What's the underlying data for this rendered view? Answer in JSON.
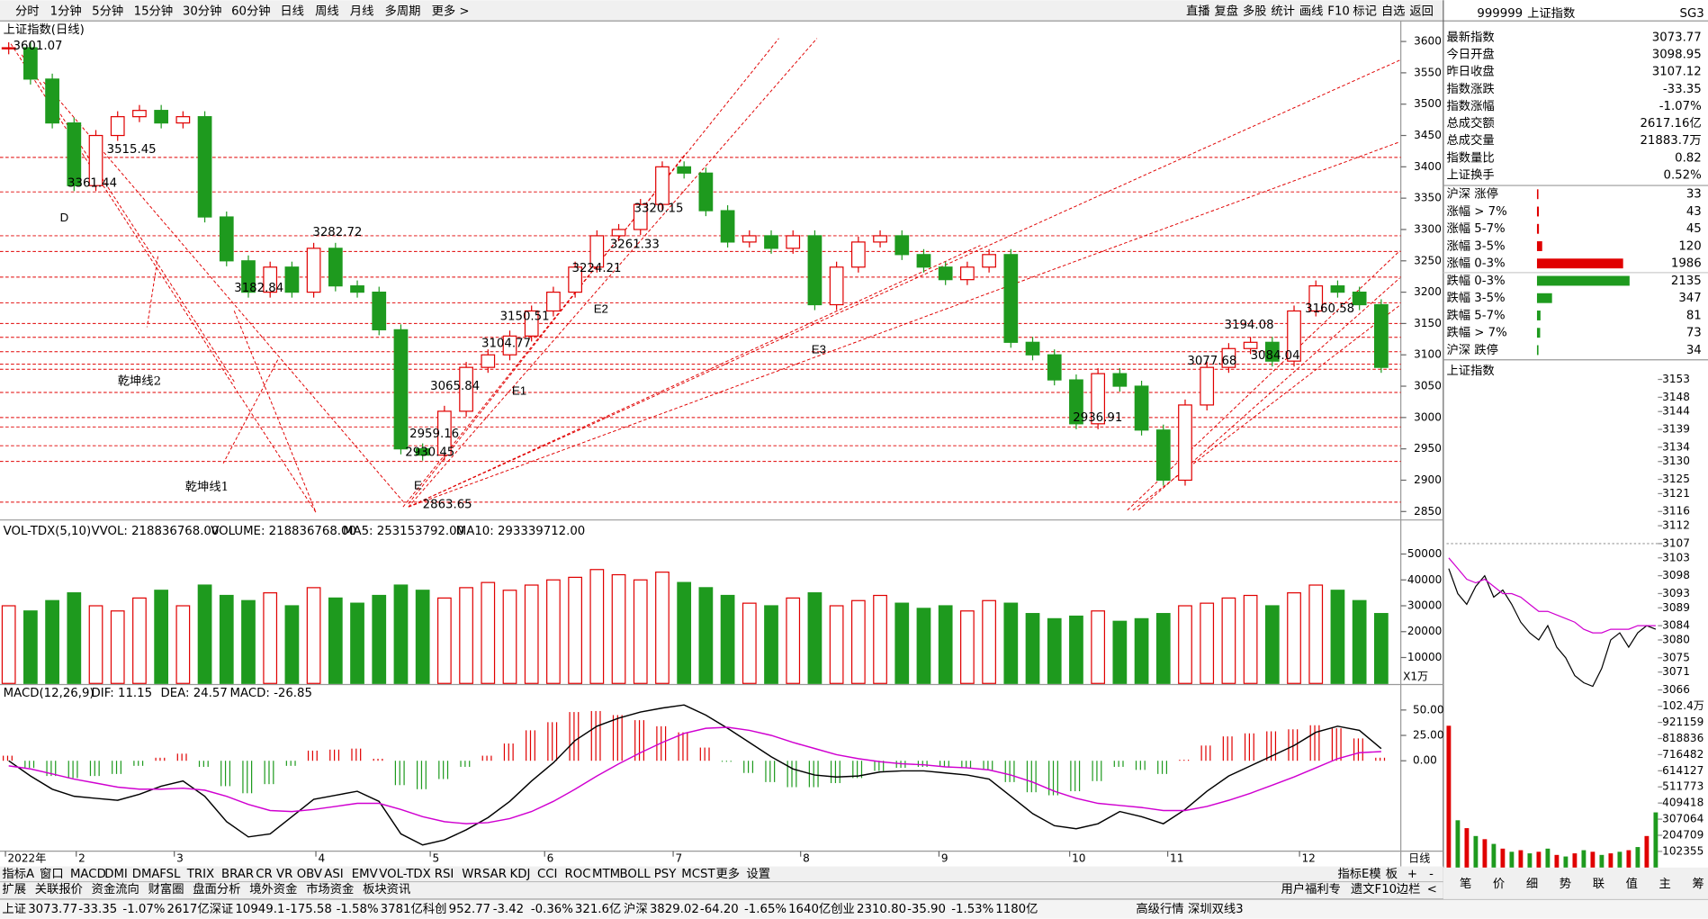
{
  "toolbar": {
    "periods": [
      "分时",
      "1分钟",
      "5分钟",
      "15分钟",
      "30分钟",
      "60分钟",
      "日线",
      "周线",
      "月线",
      "多周期",
      "更多 >"
    ],
    "active": "日线",
    "tools": [
      "直播",
      "复盘",
      "多股",
      "统计",
      "画线",
      "F10",
      "标记",
      "自选",
      "返回"
    ]
  },
  "main_chart": {
    "title": "上证指数(日线)",
    "ylim": [
      2840,
      3631
    ],
    "yticks": [
      3600,
      3550,
      3500,
      3450,
      3400,
      3350,
      3300,
      3250,
      3200,
      3150,
      3100,
      3050,
      3000,
      2950,
      2900,
      2850
    ],
    "closes": [
      3590,
      3540,
      3470,
      3370,
      3450,
      3480,
      3490,
      3470,
      3480,
      3320,
      3250,
      3200,
      3240,
      3200,
      3270,
      3210,
      3200,
      3140,
      2950,
      2940,
      3010,
      3080,
      3100,
      3130,
      3170,
      3200,
      3240,
      3290,
      3300,
      3340,
      3400,
      3390,
      3330,
      3280,
      3290,
      3270,
      3290,
      3180,
      3240,
      3280,
      3290,
      3260,
      3240,
      3220,
      3240,
      3260,
      3120,
      3100,
      3060,
      2990,
      3070,
      3050,
      2980,
      2900,
      3020,
      3080,
      3110,
      3120,
      3090,
      3170,
      3210,
      3200,
      3180,
      3080
    ],
    "levels": [
      3415,
      3360,
      3290,
      3265,
      3224,
      3183,
      3150,
      3128,
      3105,
      3085,
      3077,
      3040,
      3000,
      2985,
      2955,
      2930,
      2865
    ],
    "price_labels": [
      "3601.07",
      "3515.45",
      "3361.44",
      "3282.72",
      "3182.84",
      "3150.51",
      "3104.77",
      "3065.84",
      "3224.21",
      "3261.33",
      "3320.15",
      "2959.16",
      "2930.45",
      "2863.65",
      "2936.91",
      "3077.68",
      "3194.08",
      "3160.58",
      "3084.04"
    ],
    "annotations": [
      "D",
      "乾坤线2",
      "乾坤线1",
      "E",
      "E1",
      "E2",
      "E3"
    ]
  },
  "volume_panel": {
    "indicator": "VOL-TDX(5,10)",
    "readouts": [
      "VVOL: 218836768.00",
      "VOLUME: 218836768.00",
      "MA5: 253153792.00",
      "MA10: 293339712.00"
    ],
    "unit": "X1万",
    "ylim": [
      0,
      61900
    ],
    "yticks": [
      50000,
      40000,
      30000,
      20000,
      10000
    ],
    "values": [
      30000,
      28000,
      32000,
      35000,
      30000,
      28000,
      33000,
      36000,
      30000,
      38000,
      34000,
      32000,
      35000,
      30000,
      37000,
      33000,
      31000,
      34000,
      38000,
      36000,
      33000,
      37000,
      39000,
      36000,
      38000,
      40000,
      41000,
      44000,
      42000,
      40000,
      43000,
      39000,
      37000,
      34000,
      31000,
      30000,
      33000,
      35000,
      30000,
      32000,
      34000,
      31000,
      29000,
      30000,
      28000,
      32000,
      31000,
      27000,
      25000,
      26000,
      28000,
      24000,
      25000,
      27000,
      30000,
      31000,
      33000,
      34000,
      30000,
      35000,
      38000,
      36000,
      32000,
      27000
    ]
  },
  "macd_panel": {
    "indicator": "MACD(12,26,9)",
    "readouts": [
      "DIF: 11.15",
      "DEA: 24.57",
      "MACD: -26.85"
    ],
    "ylim": [
      -88,
      73
    ],
    "yticks": [
      {
        "value": 50,
        "label": "50.00"
      },
      {
        "value": 25,
        "label": "25.00"
      },
      {
        "value": 0,
        "label": "0.00"
      }
    ],
    "dif": [
      0,
      -15,
      -28,
      -35,
      -37,
      -39,
      -33,
      -25,
      -20,
      -35,
      -60,
      -75,
      -72,
      -55,
      -38,
      -34,
      -30,
      -40,
      -72,
      -83,
      -78,
      -68,
      -56,
      -40,
      -20,
      -2,
      20,
      34,
      42,
      48,
      52,
      55,
      45,
      32,
      18,
      4,
      -8,
      -14,
      -16,
      -15,
      -11,
      -10,
      -10,
      -12,
      -14,
      -18,
      -35,
      -52,
      -64,
      -67,
      -62,
      -50,
      -55,
      -62,
      -48,
      -30,
      -15,
      -5,
      5,
      15,
      28,
      34,
      30,
      12
    ],
    "dea": [
      -5,
      -8,
      -13,
      -18,
      -22,
      -26,
      -28,
      -28,
      -27,
      -29,
      -35,
      -43,
      -49,
      -50,
      -48,
      -45,
      -42,
      -42,
      -48,
      -55,
      -60,
      -62,
      -61,
      -57,
      -50,
      -40,
      -28,
      -15,
      -3,
      8,
      18,
      27,
      32,
      33,
      30,
      25,
      18,
      12,
      6,
      2,
      -1,
      -3,
      -4,
      -6,
      -7,
      -9,
      -14,
      -21,
      -30,
      -37,
      -42,
      -44,
      -46,
      -49,
      -49,
      -45,
      -39,
      -32,
      -24,
      -16,
      -7,
      2,
      8,
      9
    ],
    "macd": [
      5,
      -7,
      -15,
      -17,
      -15,
      -13,
      -5,
      3,
      7,
      -6,
      -25,
      -32,
      -23,
      -5,
      10,
      11,
      12,
      2,
      -24,
      -28,
      -18,
      -6,
      5,
      17,
      30,
      38,
      48,
      49,
      45,
      40,
      34,
      28,
      13,
      -1,
      -12,
      -21,
      -26,
      -26,
      -22,
      -17,
      -10,
      -7,
      -6,
      -6,
      -7,
      -9,
      -21,
      -31,
      -34,
      -30,
      -20,
      -6,
      -9,
      -13,
      1,
      15,
      24,
      27,
      29,
      31,
      35,
      32,
      22,
      3
    ]
  },
  "date_axis": {
    "labels": [
      "2022年",
      "2",
      "3",
      "4",
      "5",
      "6",
      "7",
      "8",
      "9",
      "10",
      "11",
      "12"
    ],
    "period": "日线"
  },
  "indicator_tabs": [
    "指标A",
    "窗口",
    "MACD",
    "DMI",
    "DMA",
    "FSL",
    "TRIX",
    "BRAR",
    "CR",
    "VR",
    "OBV",
    "ASI",
    "EMV",
    "VOL-TDX",
    "RSI",
    "WR",
    "SAR",
    "KDJ",
    "CCI",
    "ROC",
    "MTM",
    "BOLL",
    "PSY",
    "MCST",
    "更多",
    "设置"
  ],
  "indicator_tabs_right": [
    "指标E模",
    "板",
    "+",
    "-"
  ],
  "info_tabs": [
    "扩展",
    "关联报价",
    "资金流向",
    "财富圈",
    "盘面分析",
    "境外资金",
    "市场资金",
    "板块资讯"
  ],
  "info_tabs_right": [
    "用户福利专",
    "遗文F10",
    "边栏",
    "<"
  ],
  "quote_panel": {
    "code": "999999",
    "name": "上证指数",
    "badge": "SG3",
    "rows": [
      [
        "最新指数",
        "3073.77"
      ],
      [
        "今日开盘",
        "3098.95"
      ],
      [
        "昨日收盘",
        "3107.12"
      ],
      [
        "指数涨跌",
        "-33.35"
      ],
      [
        "指数涨幅",
        "-1.07%"
      ],
      [
        "总成交额",
        "2617.16亿"
      ],
      [
        "总成交量",
        "21883.7万"
      ],
      [
        "指数量比",
        "0.82"
      ],
      [
        "上证换手",
        "0.52%"
      ]
    ],
    "breadth": [
      {
        "label": "沪深 涨停",
        "count": 33
      },
      {
        "label": "涨幅 > 7%",
        "count": 43
      },
      {
        "label": "涨幅 5-7%",
        "count": 45
      },
      {
        "label": "涨幅 3-5%",
        "count": 120
      },
      {
        "label": "涨幅 0-3%",
        "count": 1986
      },
      {
        "label": "跌幅 0-3%",
        "count": 2135
      },
      {
        "label": "跌幅 3-5%",
        "count": 347
      },
      {
        "label": "跌幅 5-7%",
        "count": 81
      },
      {
        "label": "跌幅 > 7%",
        "count": 73
      },
      {
        "label": "沪深 跌停",
        "count": 34
      }
    ],
    "mini_title": "上证指数",
    "mini_price_ylim": [
      3066,
      3153
    ],
    "mini_price_ticks": [
      3153,
      3148,
      3144,
      3139,
      3134,
      3130,
      3125,
      3121,
      3116,
      3112,
      3107,
      3103,
      3098,
      3093,
      3089,
      3084,
      3080,
      3075,
      3071,
      3066
    ],
    "mini_volume_ylim": [
      0,
      1023550
    ],
    "mini_volume_ticks": [
      {
        "value": 1023550,
        "label": "102.4万"
      },
      921159,
      818836,
      716482,
      614127,
      511773,
      409418,
      307064,
      204709,
      102355
    ],
    "price": [
      3100,
      3093,
      3090,
      3095,
      3098,
      3092,
      3094,
      3090,
      3085,
      3082,
      3080,
      3084,
      3078,
      3075,
      3070,
      3068,
      3067,
      3072,
      3080,
      3082,
      3078,
      3082,
      3084,
      3083
    ],
    "average": [
      3103,
      3100,
      3097,
      3096,
      3097,
      3095,
      3093,
      3093,
      3092,
      3090,
      3088,
      3088,
      3087,
      3086,
      3085,
      3083,
      3082,
      3082,
      3083,
      3083,
      3083,
      3084,
      3084,
      3084
    ],
    "volume": [
      900000,
      300000,
      250000,
      200000,
      180000,
      150000,
      120000,
      100000,
      110000,
      90000,
      100000,
      120000,
      80000,
      70000,
      90000,
      110000,
      100000,
      80000,
      90000,
      100000,
      110000,
      130000,
      200000,
      350000
    ],
    "tabs": [
      "笔",
      "价",
      "细",
      "势",
      "联",
      "值",
      "主",
      "筹"
    ]
  },
  "status_bar": {
    "indices": [
      {
        "name": "上证",
        "values": [
          "3073.77",
          "-33.35",
          "-1.07%",
          "2617亿"
        ]
      },
      {
        "name": "深证",
        "values": [
          "10949.1",
          "-175.58",
          "-1.58%",
          "3781亿"
        ]
      },
      {
        "name": "科创",
        "values": [
          "952.77",
          "-3.42",
          "-0.36%",
          "321.6亿"
        ]
      },
      {
        "name": "沪深",
        "values": [
          "3829.02",
          "-64.20",
          "-1.65%",
          "1640亿"
        ]
      },
      {
        "name": "创业",
        "values": [
          "2310.80",
          "-35.90",
          "-1.53%",
          "1180亿"
        ]
      }
    ],
    "extras": [
      "高级行情",
      "深圳双线3"
    ]
  }
}
